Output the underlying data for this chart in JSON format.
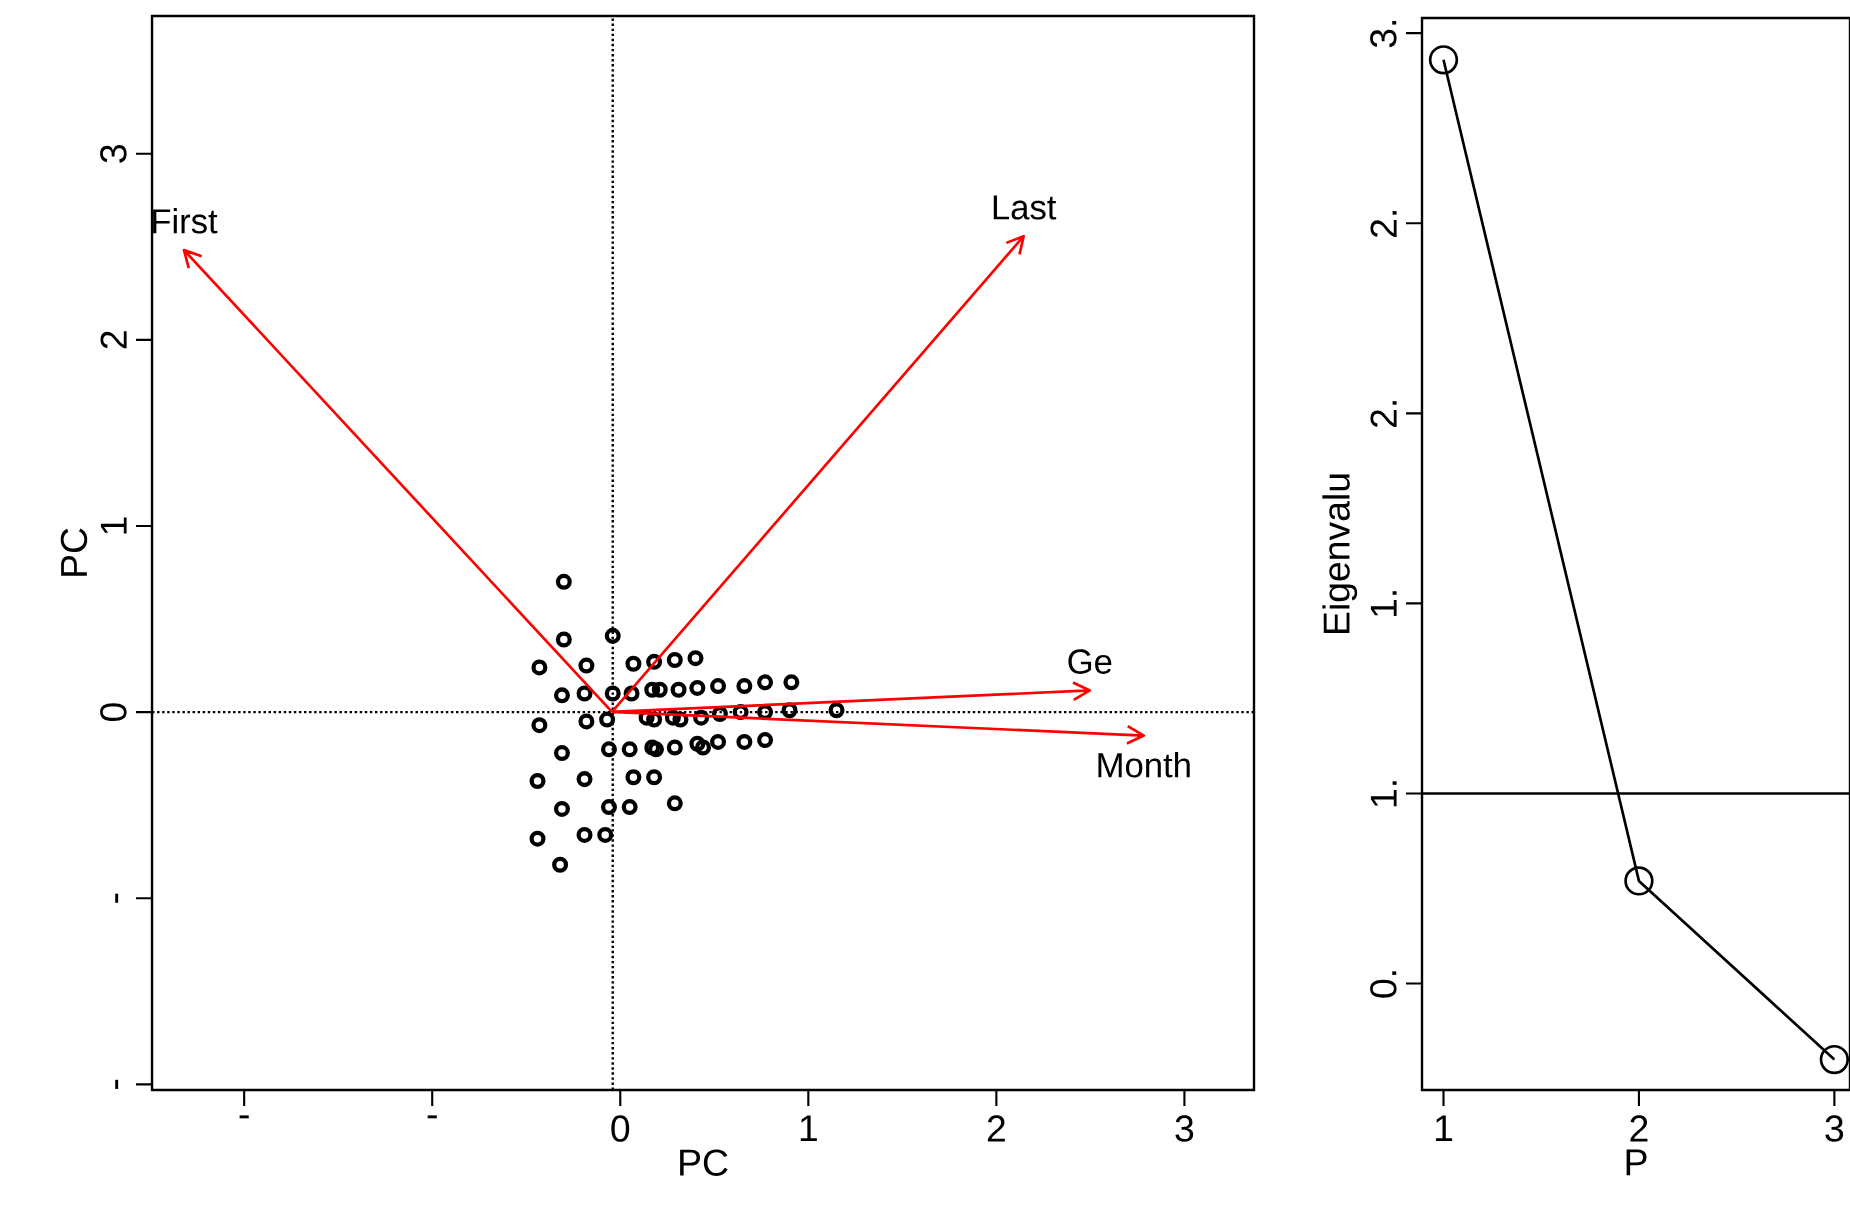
{
  "chart_data": [
    {
      "type": "scatter",
      "xlabel": "PC",
      "ylabel": "PC",
      "marker": "circle",
      "xlim": [
        -2.49,
        3.37
      ],
      "ylim": [
        -2.03,
        3.74
      ],
      "xticks": [
        {
          "value": -2,
          "label": "-"
        },
        {
          "value": -1,
          "label": "-"
        },
        0,
        1,
        2,
        3
      ],
      "yticks": [
        {
          "value": -2,
          "label": "-"
        },
        {
          "value": -1,
          "label": "-"
        },
        0,
        1,
        2,
        3
      ],
      "ref_lines": [
        {
          "axis": "x",
          "value": -0.04,
          "color": "#000000",
          "line_style": "dotted"
        },
        {
          "axis": "y",
          "value": 0,
          "color": "#000000",
          "line_style": "dotted"
        }
      ],
      "annotations": [
        "First",
        "Last",
        "Ge",
        "Month"
      ],
      "series": [
        {
          "color": "#000000",
          "x": [
            -0.3,
            -0.3,
            -0.04,
            -0.43,
            -0.18,
            0.07,
            0.18,
            0.29,
            0.4,
            -0.31,
            -0.19,
            -0.04,
            0.06,
            0.17,
            0.21,
            0.31,
            0.41,
            0.52,
            0.66,
            0.77,
            0.91,
            -0.43,
            -0.18,
            -0.07,
            0.14,
            0.18,
            0.28,
            0.32,
            0.43,
            0.53,
            0.64,
            0.77,
            0.9,
            1.15,
            -0.31,
            -0.06,
            0.05,
            0.17,
            0.19,
            0.29,
            0.41,
            0.44,
            0.52,
            0.66,
            0.77,
            -0.19,
            0.07,
            0.18,
            -0.44,
            -0.31,
            -0.06,
            0.05,
            0.29,
            -0.44,
            -0.19,
            -0.08,
            -0.32
          ],
          "values": [
            0.7,
            0.39,
            0.41,
            0.24,
            0.25,
            0.26,
            0.27,
            0.28,
            0.29,
            0.09,
            0.1,
            0.1,
            0.1,
            0.12,
            0.12,
            0.12,
            0.13,
            0.14,
            0.14,
            0.16,
            0.16,
            -0.07,
            -0.05,
            -0.04,
            -0.03,
            -0.04,
            -0.03,
            -0.04,
            -0.03,
            -0.01,
            0.0,
            0.0,
            0.01,
            0.01,
            -0.22,
            -0.2,
            -0.2,
            -0.19,
            -0.2,
            -0.19,
            -0.17,
            -0.19,
            -0.16,
            -0.16,
            -0.15,
            -0.36,
            -0.35,
            -0.35,
            -0.37,
            -0.52,
            -0.51,
            -0.51,
            -0.49,
            -0.68,
            -0.66,
            -0.66,
            -0.82
          ]
        }
      ]
    },
    {
      "type": "line",
      "xlabel": "P",
      "ylabel": "Eigenvalu",
      "marker": "circle",
      "xlim": [
        0.89,
        3.08
      ],
      "ylim": [
        0.22,
        3.04
      ],
      "xticks": [
        1,
        2,
        3
      ],
      "yticks": [
        {
          "value": 0.5,
          "label": "0."
        },
        {
          "value": 1.0,
          "label": "1."
        },
        {
          "value": 1.5,
          "label": "1."
        },
        {
          "value": 2.0,
          "label": "2."
        },
        {
          "value": 2.5,
          "label": "2."
        },
        {
          "value": 3.0,
          "label": "3."
        }
      ],
      "ref_lines": [
        {
          "axis": "y",
          "value": 1.0,
          "color": "#000000",
          "line_style": "solid"
        }
      ],
      "series": [
        {
          "color": "#000000",
          "x": [
            1,
            2,
            3
          ],
          "values": [
            2.93,
            0.77,
            0.3
          ]
        }
      ]
    }
  ]
}
